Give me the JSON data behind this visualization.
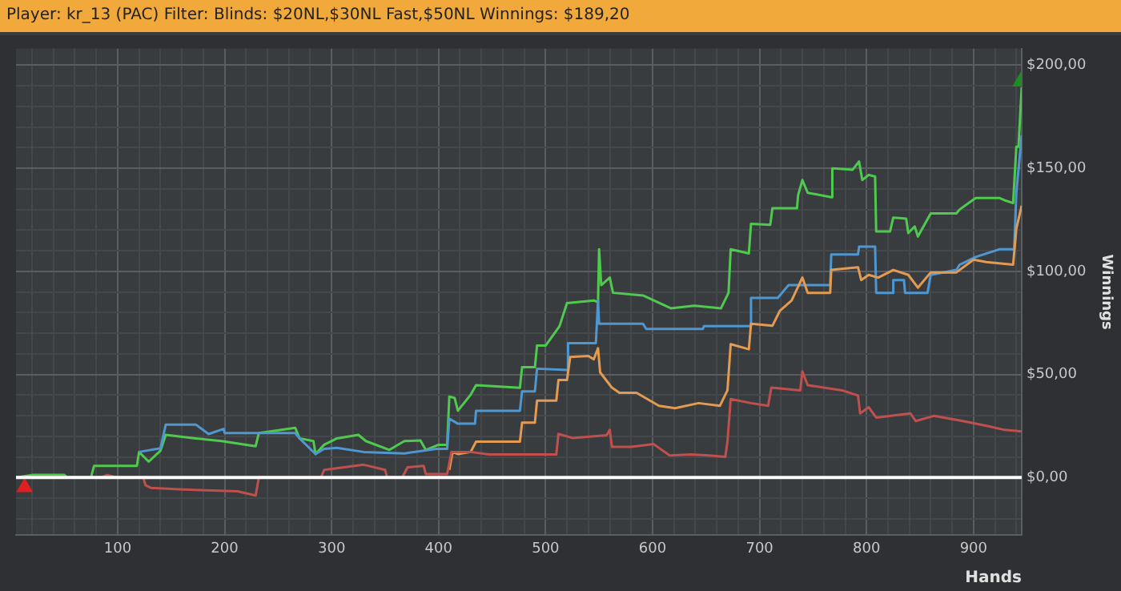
{
  "chart_data": {
    "type": "line",
    "title": "Player: kr_13 (PAC) Filter: Blinds: $20NL,$30NL Fast,$50NL Winnings: $189,20",
    "xlabel": "Hands",
    "ylabel": "Winnings",
    "xlim": [
      5,
      945
    ],
    "ylim": [
      -28,
      208
    ],
    "xticks": [
      {
        "value": 20,
        "label": null
      },
      {
        "value": 40,
        "label": null
      },
      {
        "value": 60,
        "label": null
      },
      {
        "value": 80,
        "label": null
      },
      100,
      {
        "value": 120,
        "label": null
      },
      {
        "value": 140,
        "label": null
      },
      {
        "value": 160,
        "label": null
      },
      {
        "value": 180,
        "label": null
      },
      200,
      {
        "value": 220,
        "label": null
      },
      {
        "value": 240,
        "label": null
      },
      {
        "value": 260,
        "label": null
      },
      {
        "value": 280,
        "label": null
      },
      300,
      {
        "value": 320,
        "label": null
      },
      {
        "value": 340,
        "label": null
      },
      {
        "value": 360,
        "label": null
      },
      {
        "value": 380,
        "label": null
      },
      400,
      {
        "value": 420,
        "label": null
      },
      {
        "value": 440,
        "label": null
      },
      {
        "value": 460,
        "label": null
      },
      {
        "value": 480,
        "label": null
      },
      500,
      {
        "value": 520,
        "label": null
      },
      {
        "value": 540,
        "label": null
      },
      {
        "value": 560,
        "label": null
      },
      {
        "value": 580,
        "label": null
      },
      600,
      {
        "value": 620,
        "label": null
      },
      {
        "value": 640,
        "label": null
      },
      {
        "value": 660,
        "label": null
      },
      {
        "value": 680,
        "label": null
      },
      700,
      {
        "value": 720,
        "label": null
      },
      {
        "value": 740,
        "label": null
      },
      {
        "value": 760,
        "label": null
      },
      {
        "value": 780,
        "label": null
      },
      800,
      {
        "value": 820,
        "label": null
      },
      {
        "value": 840,
        "label": null
      },
      {
        "value": 860,
        "label": null
      },
      {
        "value": 880,
        "label": null
      },
      900,
      {
        "value": 920,
        "label": null
      },
      {
        "value": 940,
        "label": null
      }
    ],
    "yticks": [
      {
        "value": -20,
        "label": null
      },
      {
        "value": -10,
        "label": null
      },
      {
        "value": 0,
        "label": "$0,00"
      },
      {
        "value": 10,
        "label": null
      },
      {
        "value": 20,
        "label": null
      },
      {
        "value": 30,
        "label": null
      },
      {
        "value": 40,
        "label": null
      },
      {
        "value": 50,
        "label": "$50,00"
      },
      {
        "value": 60,
        "label": null
      },
      {
        "value": 70,
        "label": null
      },
      {
        "value": 80,
        "label": null
      },
      {
        "value": 90,
        "label": null
      },
      {
        "value": 100,
        "label": "$100,00"
      },
      {
        "value": 110,
        "label": null
      },
      {
        "value": 120,
        "label": null
      },
      {
        "value": 130,
        "label": null
      },
      {
        "value": 140,
        "label": null
      },
      {
        "value": 150,
        "label": "$150,00"
      },
      {
        "value": 160,
        "label": null
      },
      {
        "value": 170,
        "label": null
      },
      {
        "value": 180,
        "label": null
      },
      {
        "value": 190,
        "label": null
      },
      {
        "value": 200,
        "label": "$200,00"
      }
    ],
    "grid": true,
    "legend": false,
    "marker": "none",
    "line_style": "solid",
    "ref_lines": [
      {
        "axis": "y",
        "value": 0,
        "label": null,
        "color": "#ffffff"
      }
    ],
    "series": [
      {
        "color": "#c0504d",
        "x": [
          5,
          85,
          90,
          100,
          124,
          126,
          131,
          158,
          183,
          212,
          229,
          232,
          290,
          293,
          330,
          350,
          352,
          366,
          371,
          386,
          388,
          408,
          412,
          430,
          447,
          510,
          512,
          525,
          557,
          560,
          562,
          580,
          601,
          616,
          636,
          653,
          668,
          670,
          673,
          692,
          708,
          711,
          738,
          740,
          745,
          777,
          792,
          794,
          802,
          809,
          841,
          846,
          863,
          890,
          914,
          929,
          945
        ],
        "values": [
          0,
          0,
          1.2,
          0,
          0,
          -3.7,
          -5,
          -5.7,
          -6.2,
          -6.7,
          -8.7,
          0,
          0,
          3.7,
          6.2,
          3.7,
          0,
          0,
          5,
          5.7,
          1.7,
          1.7,
          12.4,
          12.4,
          11.2,
          11.2,
          21.2,
          19.2,
          20.5,
          23.1,
          14.9,
          14.9,
          16.2,
          10.7,
          11.2,
          10.7,
          10,
          17.4,
          38.1,
          36.1,
          34.8,
          43.6,
          42.3,
          51.5,
          44.8,
          42.3,
          39.8,
          31.1,
          34.1,
          29.1,
          31.1,
          27.4,
          29.9,
          27.4,
          24.9,
          23.1,
          22.4
        ]
      },
      {
        "color": "#e39a52",
        "x": [
          410,
          413,
          418,
          430,
          435,
          476,
          478,
          490,
          492,
          510,
          512,
          520,
          523,
          540,
          545,
          549,
          551,
          562,
          569,
          585,
          606,
          621,
          643,
          663,
          670,
          673,
          690,
          692,
          712,
          719,
          730,
          740,
          745,
          766,
          767,
          792,
          795,
          802,
          811,
          825,
          839,
          848,
          860,
          884,
          900,
          912,
          937,
          940,
          945
        ],
        "values": [
          3.7,
          12.4,
          11.4,
          12.4,
          17.4,
          17.4,
          26.6,
          26.6,
          37.3,
          37.3,
          47.3,
          47.3,
          58.5,
          59,
          57.3,
          62.7,
          51,
          43.6,
          41.1,
          41.1,
          34.8,
          33.6,
          36.1,
          34.8,
          42.3,
          64.7,
          62.2,
          74.6,
          73.6,
          80.9,
          85.9,
          97,
          89.6,
          89.6,
          100.7,
          102,
          95.8,
          98.3,
          97,
          100.7,
          98.3,
          92.1,
          99.5,
          99.5,
          105.7,
          104.5,
          103.2,
          120.7,
          131.9
        ]
      },
      {
        "color": "#4f97d0",
        "x": [
          120,
          140,
          145,
          173,
          185,
          199,
          200,
          266,
          270,
          285,
          293,
          305,
          330,
          368,
          398,
          408,
          410,
          418,
          434,
          435,
          476,
          478,
          490,
          492,
          520,
          521,
          547,
          549,
          550,
          591,
          594,
          647,
          648,
          691,
          692,
          717,
          727,
          766,
          767,
          792,
          793,
          808,
          809,
          824,
          825,
          835,
          836,
          857,
          860,
          884,
          887,
          902,
          924,
          938,
          940,
          945
        ],
        "values": [
          12.4,
          14.2,
          25.7,
          25.7,
          21.1,
          23.6,
          21.6,
          21.6,
          19,
          11.4,
          13.9,
          14.4,
          12.4,
          11.7,
          13.9,
          13.9,
          28.6,
          26.1,
          26.1,
          32.4,
          32.4,
          41.8,
          41.8,
          52.8,
          52.2,
          65.2,
          65.2,
          85.9,
          74.6,
          74.6,
          72.1,
          72.1,
          73.4,
          73.4,
          87.1,
          87.1,
          93.3,
          93.3,
          108.2,
          108.2,
          112,
          112,
          89.6,
          89.6,
          95.8,
          95.8,
          89.6,
          89.6,
          98.3,
          100.7,
          103.2,
          107,
          110.7,
          110.7,
          138.1,
          166
        ]
      },
      {
        "color": "#4fca4f",
        "x": [
          5,
          21,
          50,
          53,
          75,
          78,
          118,
          120,
          129,
          140,
          145,
          173,
          197,
          229,
          232,
          266,
          270,
          283,
          285,
          293,
          305,
          325,
          332,
          354,
          368,
          383,
          388,
          400,
          408,
          410,
          415,
          418,
          430,
          435,
          476,
          478,
          490,
          492,
          500,
          513,
          520,
          545,
          549,
          550,
          552,
          560,
          563,
          591,
          617,
          639,
          664,
          671,
          673,
          690,
          692,
          710,
          712,
          735,
          736,
          740,
          745,
          767,
          768,
          787,
          793,
          796,
          802,
          808,
          809,
          822,
          825,
          837,
          839,
          845,
          848,
          860,
          884,
          887,
          902,
          924,
          930,
          937,
          940,
          942,
          945
        ],
        "values": [
          0,
          1.3,
          1.3,
          0,
          0,
          5.7,
          5.7,
          12.4,
          7.7,
          13,
          20.7,
          19,
          17.7,
          15.2,
          21.6,
          24.1,
          19,
          17.7,
          11.4,
          15.9,
          19,
          20.7,
          17.7,
          13.4,
          17.7,
          18,
          13.4,
          15.9,
          15.9,
          39.3,
          38.6,
          32.4,
          40.2,
          44.8,
          43.5,
          53.5,
          53.5,
          64,
          64,
          73.4,
          84.6,
          85.9,
          85,
          110.7,
          93.3,
          97,
          89.6,
          88.3,
          82.1,
          83.3,
          82.1,
          89.6,
          110.7,
          108.7,
          123.1,
          122.6,
          130.6,
          130.6,
          136.9,
          144.3,
          138.1,
          136,
          150,
          149.3,
          153.3,
          144.3,
          146.8,
          146,
          119.4,
          119.4,
          126.1,
          125.6,
          118.6,
          121.8,
          116.9,
          128.1,
          128.1,
          130,
          135.6,
          135.6,
          134.3,
          133.1,
          160.4,
          160.4,
          189.2
        ]
      },
      {
        "type": "scatter",
        "marker": "triangle",
        "x": [
          13,
          944
        ],
        "values": [
          -4.7,
          192
        ],
        "colors": [
          "#e02020",
          "#1e8c1e"
        ]
      }
    ]
  }
}
